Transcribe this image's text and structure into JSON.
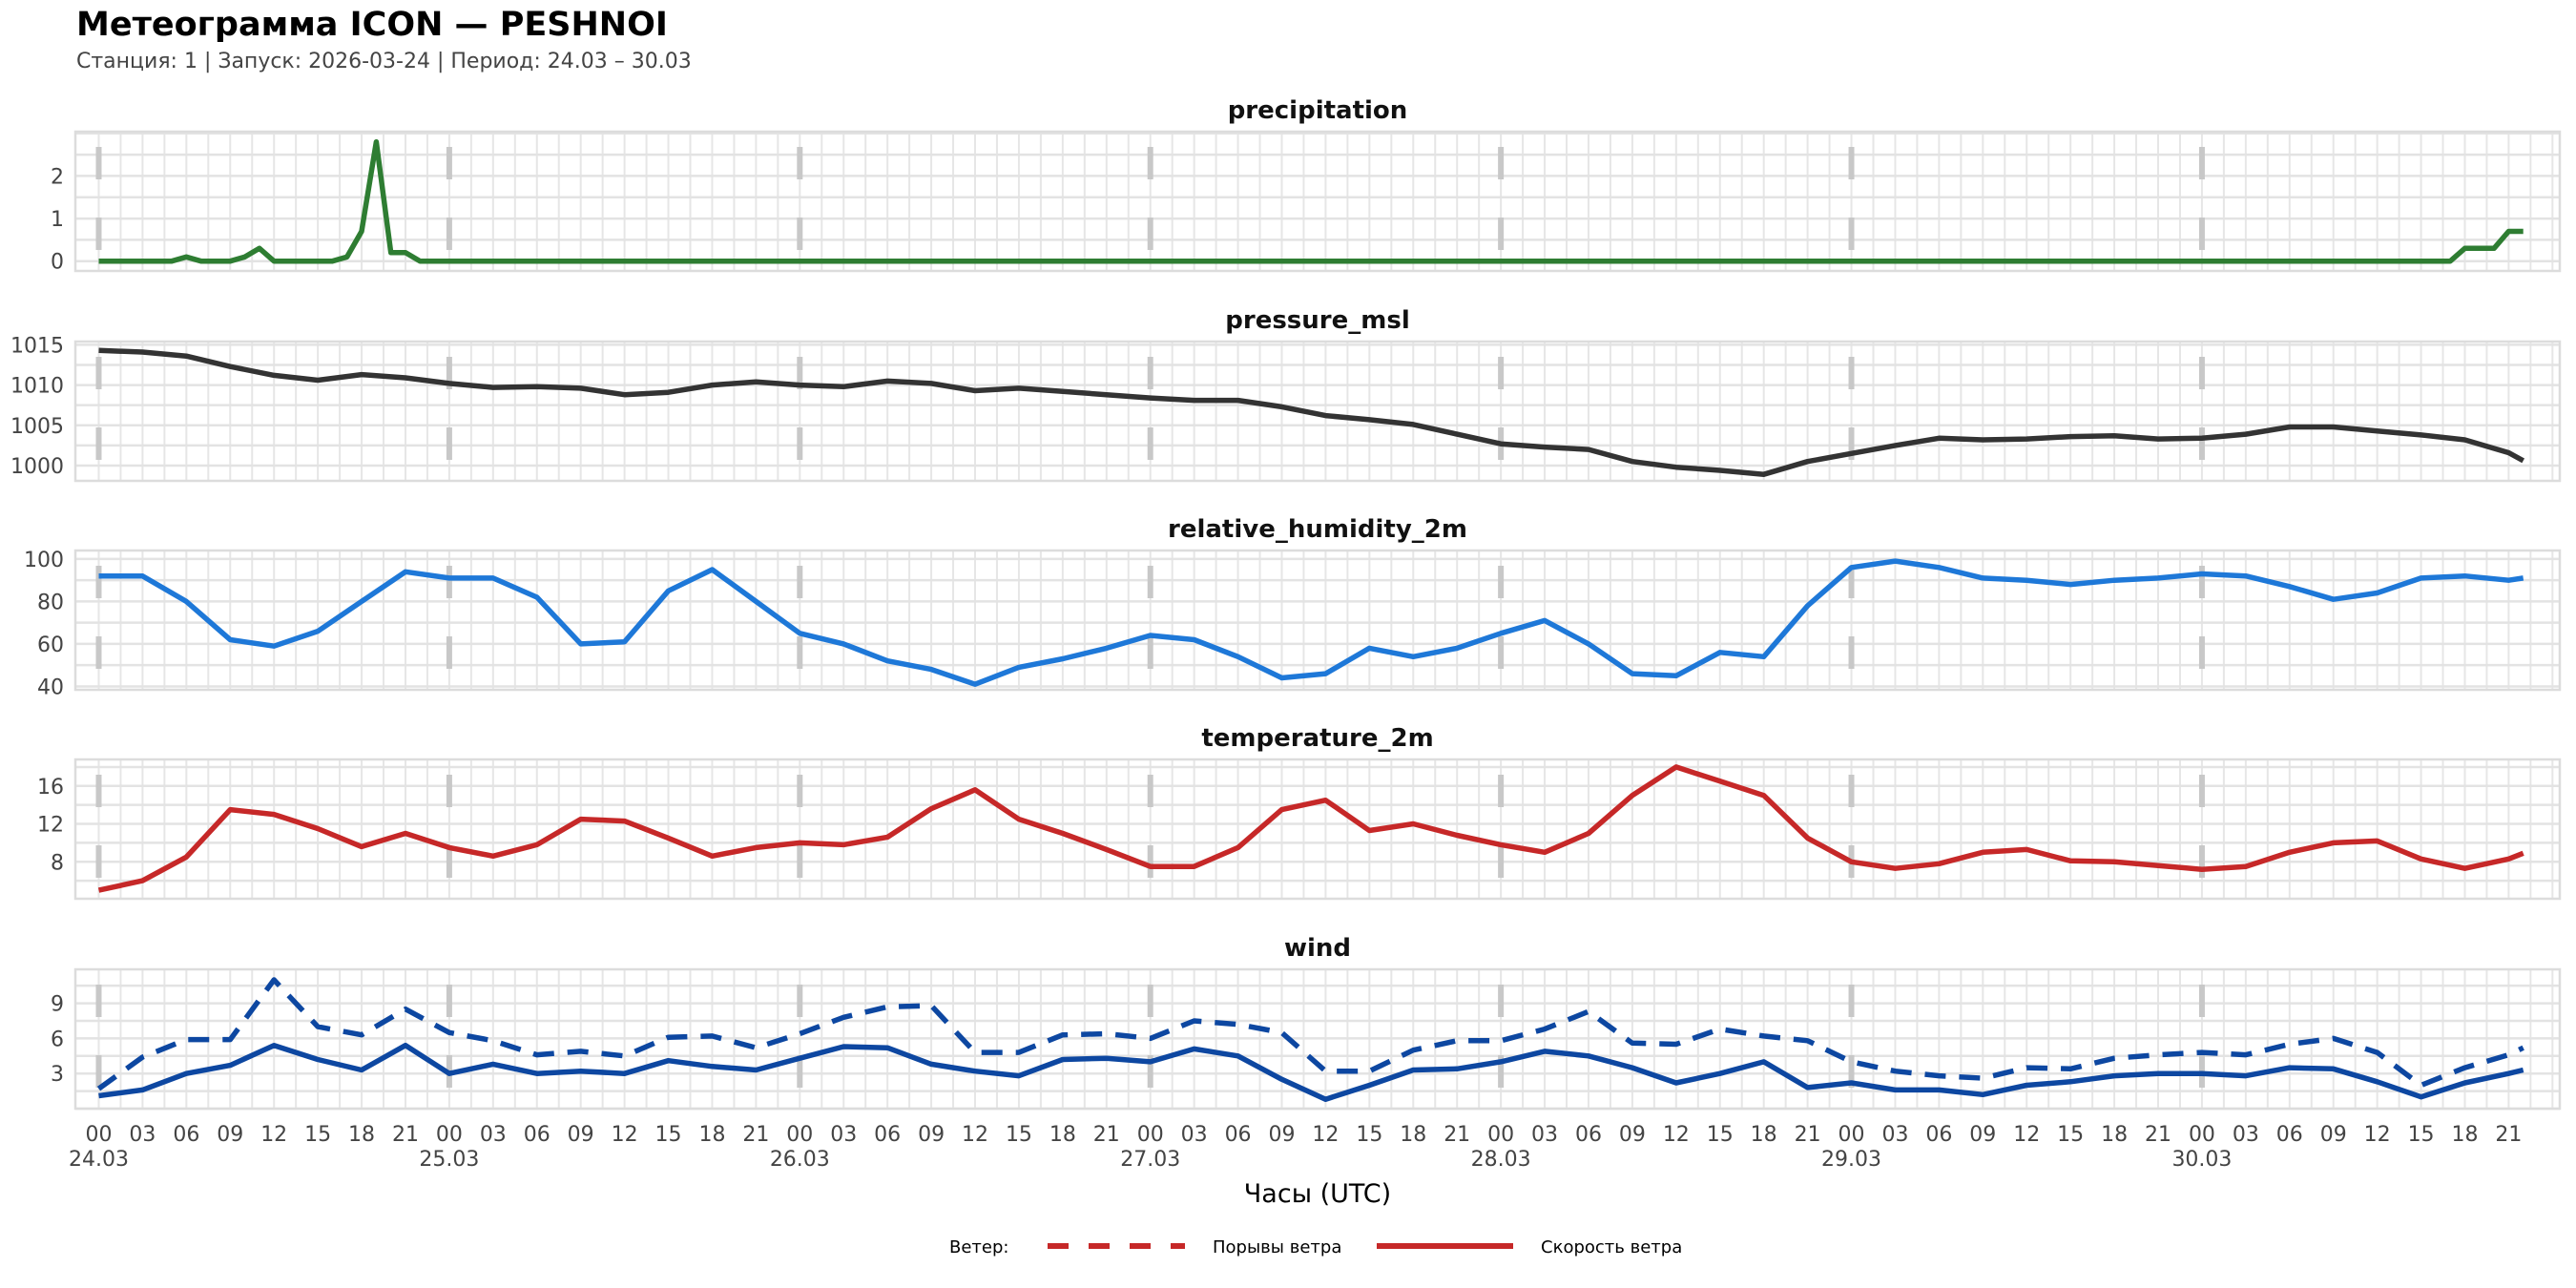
{
  "header": {
    "title": "Метеограмма ICON — PESHNOI",
    "subtitle": "Станция: 1  | Запуск: 2026-03-24  | Период: 24.03 – 30.03"
  },
  "x_axis": {
    "label": "Часы (UTC)",
    "hours": [
      0,
      3,
      6,
      9,
      12,
      15,
      18,
      21,
      24,
      27,
      30,
      33,
      36,
      39,
      42,
      45,
      48,
      51,
      54,
      57,
      60,
      63,
      66,
      69,
      72,
      75,
      78,
      81,
      84,
      87,
      90,
      93,
      96,
      99,
      102,
      105,
      108,
      111,
      114,
      117,
      120,
      123,
      126,
      129,
      132,
      135,
      138,
      141,
      144,
      147,
      150,
      153,
      156,
      159,
      162,
      165,
      166
    ],
    "tick_labels": [
      "00",
      "03",
      "06",
      "09",
      "12",
      "15",
      "18",
      "21"
    ],
    "date_labels": [
      "24.03",
      "25.03",
      "26.03",
      "27.03",
      "28.03",
      "29.03",
      "30.03"
    ],
    "xlim_hours": [
      -1.6,
      168.5
    ]
  },
  "chart_data": [
    {
      "type": "line",
      "title": "precipitation",
      "ylim": [
        -0.23,
        3.04
      ],
      "yticks": [
        0,
        1,
        2
      ],
      "series": [
        {
          "name": "precipitation",
          "color": "#2e7d32",
          "style": "solid",
          "points": [
            [
              0,
              0
            ],
            [
              5,
              0
            ],
            [
              6,
              0.1
            ],
            [
              7,
              0
            ],
            [
              9,
              0
            ],
            [
              10,
              0.1
            ],
            [
              11,
              0.3
            ],
            [
              12,
              0
            ],
            [
              16,
              0
            ],
            [
              17,
              0.1
            ],
            [
              18,
              0.7
            ],
            [
              19,
              2.8
            ],
            [
              20,
              0.2
            ],
            [
              21,
              0.2
            ],
            [
              22,
              0
            ],
            [
              161,
              0
            ],
            [
              162,
              0.3
            ],
            [
              164,
              0.3
            ],
            [
              165,
              0.7
            ],
            [
              166,
              0.7
            ]
          ]
        }
      ]
    },
    {
      "type": "line",
      "title": "pressure_msl",
      "ylim": [
        998.1,
        1015.4
      ],
      "yticks": [
        1000,
        1005,
        1010,
        1015
      ],
      "series": [
        {
          "name": "pressure_msl",
          "color": "#333333",
          "style": "solid",
          "values": [
            1014.3,
            1014.1,
            1013.6,
            1012.3,
            1011.2,
            1010.6,
            1011.3,
            1010.9,
            1010.2,
            1009.7,
            1009.8,
            1009.6,
            1008.8,
            1009.1,
            1010.0,
            1010.4,
            1010.0,
            1009.8,
            1010.5,
            1010.2,
            1009.3,
            1009.6,
            1009.2,
            1008.8,
            1008.4,
            1008.1,
            1008.1,
            1007.3,
            1006.2,
            1005.7,
            1005.1,
            1003.9,
            1002.7,
            1002.3,
            1002.0,
            1000.5,
            999.8,
            999.4,
            998.9,
            1000.5,
            1001.5,
            1002.5,
            1003.4,
            1003.2,
            1003.3,
            1003.6,
            1003.7,
            1003.3,
            1003.4,
            1003.9,
            1004.8,
            1004.8,
            1004.3,
            1003.8,
            1003.2,
            1001.6,
            1000.6
          ]
        }
      ]
    },
    {
      "type": "line",
      "title": "relative_humidity_2m",
      "ylim": [
        38.4,
        104
      ],
      "yticks": [
        40,
        60,
        80,
        100
      ],
      "series": [
        {
          "name": "relative_humidity_2m",
          "color": "#1e78d8",
          "style": "solid",
          "values": [
            92,
            92,
            80,
            62,
            59,
            66,
            80,
            94,
            91,
            91,
            82,
            60,
            61,
            85,
            95,
            80,
            65,
            60,
            52,
            48,
            41,
            49,
            53,
            58,
            64,
            62,
            54,
            44,
            46,
            58,
            54,
            58,
            65,
            71,
            60,
            46,
            45,
            56,
            54,
            78,
            96,
            99,
            96,
            91,
            90,
            88,
            90,
            91,
            93,
            92,
            87,
            81,
            84,
            91,
            92,
            90,
            91
          ]
        }
      ]
    },
    {
      "type": "line",
      "title": "temperature_2m",
      "ylim": [
        4.1,
        18.8
      ],
      "yticks": [
        8,
        12,
        16
      ],
      "series": [
        {
          "name": "temperature_2m",
          "color": "#c62828",
          "style": "solid",
          "values": [
            5.0,
            6.0,
            8.5,
            13.5,
            13.0,
            11.5,
            9.6,
            11.0,
            9.5,
            8.6,
            9.8,
            12.5,
            12.3,
            10.5,
            8.6,
            9.5,
            10.0,
            9.8,
            10.6,
            13.6,
            15.6,
            12.5,
            11.0,
            9.3,
            7.5,
            7.5,
            9.5,
            13.5,
            14.5,
            11.3,
            12.0,
            10.8,
            9.8,
            9.0,
            11.0,
            15.0,
            18.0,
            16.5,
            15.0,
            10.5,
            8.0,
            7.3,
            7.8,
            9.0,
            9.3,
            8.1,
            8.0,
            7.6,
            7.2,
            7.5,
            9.0,
            10.0,
            10.2,
            8.3,
            7.3,
            8.3,
            8.9
          ]
        }
      ]
    },
    {
      "type": "line",
      "title": "wind",
      "ylim": [
        0,
        11.9
      ],
      "yticks": [
        3,
        6,
        9
      ],
      "series": [
        {
          "name": "Порывы ветра",
          "color": "#0d47a1",
          "style": "dashed",
          "values": [
            1.7,
            4.4,
            5.9,
            5.9,
            11.0,
            7.0,
            6.3,
            8.5,
            6.5,
            5.8,
            4.6,
            4.9,
            4.5,
            6.1,
            6.2,
            5.2,
            6.4,
            7.8,
            8.7,
            8.8,
            4.8,
            4.8,
            6.3,
            6.4,
            6.0,
            7.5,
            7.2,
            6.5,
            3.2,
            3.2,
            5.0,
            5.8,
            5.8,
            6.8,
            8.3,
            5.6,
            5.5,
            6.8,
            6.2,
            5.8,
            4.0,
            3.2,
            2.8,
            2.6,
            3.5,
            3.4,
            4.3,
            4.6,
            4.8,
            4.6,
            5.5,
            6.0,
            4.8,
            2.0,
            3.5,
            4.6,
            5.2
          ]
        },
        {
          "name": "Скорость ветра",
          "color": "#0d47a1",
          "style": "solid",
          "values": [
            1.1,
            1.6,
            3.0,
            3.7,
            5.4,
            4.2,
            3.3,
            5.4,
            3.0,
            3.8,
            3.0,
            3.2,
            3.0,
            4.1,
            3.6,
            3.3,
            4.3,
            5.3,
            5.2,
            3.8,
            3.2,
            2.8,
            4.2,
            4.3,
            4.0,
            5.1,
            4.5,
            2.5,
            0.8,
            2.0,
            3.3,
            3.4,
            4.0,
            4.9,
            4.5,
            3.5,
            2.2,
            3.0,
            4.0,
            1.8,
            2.2,
            1.6,
            1.6,
            1.2,
            2.0,
            2.3,
            2.8,
            3.0,
            3.0,
            2.8,
            3.5,
            3.4,
            2.3,
            1.0,
            2.2,
            3.0,
            3.3
          ]
        }
      ]
    }
  ],
  "legend": {
    "title": "Ветер:",
    "color": "#c62828",
    "items": [
      {
        "label": "Порывы ветра",
        "style": "dashed"
      },
      {
        "label": "Скорость ветра",
        "style": "solid"
      }
    ]
  }
}
